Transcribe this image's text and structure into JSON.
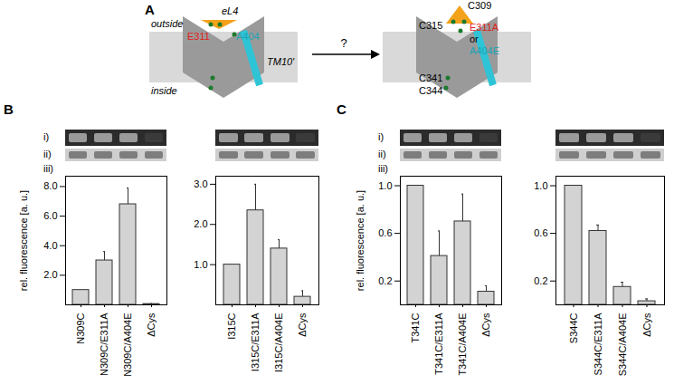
{
  "chart_data": [
    {
      "type": "bar",
      "categories": [
        "N309C",
        "N309C/E311A",
        "N309C/A404E",
        "ΔCys"
      ],
      "values": [
        1.0,
        3.0,
        6.8,
        0.05
      ],
      "errors": [
        0,
        0.6,
        1.1,
        0.03
      ],
      "color": "#d3d3d3",
      "y_label": "rel. fluorescence [a. u.]",
      "ylim": [
        0,
        8.7
      ],
      "yticks": [
        {
          "value": 2,
          "label": "2.0"
        },
        {
          "value": 4,
          "label": "4.0"
        },
        {
          "value": 6,
          "label": "6.0"
        },
        {
          "value": 8,
          "label": "8.0"
        }
      ]
    },
    {
      "type": "bar",
      "categories": [
        "I315C",
        "I315C/E311A",
        "I315C/A404E",
        "ΔCys"
      ],
      "values": [
        1.0,
        2.35,
        1.4,
        0.2
      ],
      "errors": [
        0,
        0.65,
        0.22,
        0.15
      ],
      "color": "#d3d3d3",
      "ylim": [
        0,
        3.2
      ],
      "yticks": [
        {
          "value": 1,
          "label": "1.0"
        },
        {
          "value": 2,
          "label": "2.0"
        },
        {
          "value": 3,
          "label": "3.0"
        }
      ]
    },
    {
      "type": "bar",
      "categories": [
        "T341C",
        "T341C/E311A",
        "T341C/A404E",
        "ΔCys"
      ],
      "values": [
        1.0,
        0.41,
        0.7,
        0.11
      ],
      "errors": [
        0,
        0.21,
        0.23,
        0.05
      ],
      "color": "#d3d3d3",
      "y_label": "rel. fluorescence [a. u.]",
      "ylim": [
        0,
        1.08
      ],
      "yticks": [
        0.2,
        0.6,
        {
          "value": 1,
          "label": "1.0"
        }
      ]
    },
    {
      "type": "bar",
      "categories": [
        "S344C",
        "S344C/E311A",
        "S344C/A404E",
        "ΔCys"
      ],
      "values": [
        1.0,
        0.62,
        0.15,
        0.03
      ],
      "errors": [
        0,
        0.05,
        0.04,
        0.02
      ],
      "color": "#d3d3d3",
      "ylim": [
        0,
        1.08
      ],
      "yticks": [
        0.2,
        0.6,
        {
          "value": 1,
          "label": "1.0"
        }
      ]
    }
  ],
  "figure": {
    "panel_labels": [
      "A",
      "B",
      "C"
    ],
    "row_labels": [
      "i)",
      "ii)",
      "iii)"
    ]
  },
  "diagram": {
    "left_labels": {
      "loop": "eL4",
      "outside": "outside",
      "inside": "inside",
      "residue_e": "E311",
      "residue_a": "A404",
      "helix": "TM10'"
    },
    "transition": "?",
    "right_labels": {
      "c1": "C309",
      "c2": "C315",
      "mut1": "E311A",
      "or": "or",
      "mut2": "A404E",
      "c3": "C341",
      "c4": "C344"
    }
  }
}
